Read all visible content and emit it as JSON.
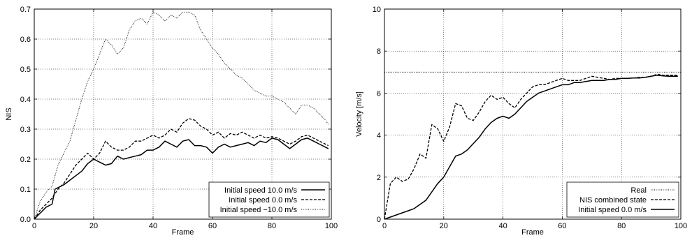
{
  "chart_data": [
    {
      "type": "line",
      "xlabel": "Frame",
      "ylabel": "NIS",
      "xlim": [
        0,
        100
      ],
      "ylim": [
        0,
        0.7
      ],
      "xticks": [
        0,
        20,
        40,
        60,
        80,
        100
      ],
      "yticks": [
        0,
        0.1,
        0.2,
        0.3,
        0.4,
        0.5,
        0.6,
        0.7
      ],
      "grid": true,
      "legend_position": "bottom-right",
      "series": [
        {
          "name": "Initial speed  10.0 m/s",
          "style": "solid",
          "points": [
            [
              0,
              0
            ],
            [
              2,
              0.02
            ],
            [
              4,
              0.04
            ],
            [
              6,
              0.05
            ],
            [
              7,
              0.1
            ],
            [
              10,
              0.115
            ],
            [
              12,
              0.13
            ],
            [
              14,
              0.145
            ],
            [
              16,
              0.16
            ],
            [
              18,
              0.185
            ],
            [
              20,
              0.2
            ],
            [
              22,
              0.19
            ],
            [
              24,
              0.18
            ],
            [
              26,
              0.185
            ],
            [
              28,
              0.21
            ],
            [
              30,
              0.2
            ],
            [
              32,
              0.205
            ],
            [
              34,
              0.21
            ],
            [
              36,
              0.215
            ],
            [
              38,
              0.23
            ],
            [
              40,
              0.23
            ],
            [
              42,
              0.24
            ],
            [
              44,
              0.26
            ],
            [
              46,
              0.25
            ],
            [
              48,
              0.24
            ],
            [
              50,
              0.26
            ],
            [
              52,
              0.265
            ],
            [
              54,
              0.245
            ],
            [
              56,
              0.245
            ],
            [
              58,
              0.24
            ],
            [
              60,
              0.22
            ],
            [
              62,
              0.24
            ],
            [
              64,
              0.25
            ],
            [
              66,
              0.24
            ],
            [
              68,
              0.245
            ],
            [
              70,
              0.25
            ],
            [
              72,
              0.255
            ],
            [
              74,
              0.245
            ],
            [
              76,
              0.26
            ],
            [
              78,
              0.255
            ],
            [
              80,
              0.27
            ],
            [
              82,
              0.265
            ],
            [
              84,
              0.25
            ],
            [
              86,
              0.235
            ],
            [
              88,
              0.25
            ],
            [
              90,
              0.265
            ],
            [
              92,
              0.27
            ],
            [
              94,
              0.26
            ],
            [
              96,
              0.25
            ],
            [
              98,
              0.24
            ],
            [
              99,
              0.235
            ]
          ]
        },
        {
          "name": "Initial speed  0.0 m/s",
          "style": "dashed",
          "points": [
            [
              0,
              0
            ],
            [
              2,
              0.03
            ],
            [
              4,
              0.05
            ],
            [
              6,
              0.07
            ],
            [
              8,
              0.1
            ],
            [
              10,
              0.12
            ],
            [
              12,
              0.15
            ],
            [
              14,
              0.18
            ],
            [
              16,
              0.2
            ],
            [
              18,
              0.22
            ],
            [
              20,
              0.2
            ],
            [
              22,
              0.22
            ],
            [
              24,
              0.26
            ],
            [
              26,
              0.24
            ],
            [
              28,
              0.23
            ],
            [
              30,
              0.23
            ],
            [
              32,
              0.24
            ],
            [
              34,
              0.26
            ],
            [
              36,
              0.26
            ],
            [
              38,
              0.27
            ],
            [
              40,
              0.28
            ],
            [
              42,
              0.27
            ],
            [
              44,
              0.28
            ],
            [
              46,
              0.3
            ],
            [
              48,
              0.29
            ],
            [
              50,
              0.32
            ],
            [
              52,
              0.335
            ],
            [
              54,
              0.33
            ],
            [
              56,
              0.31
            ],
            [
              58,
              0.3
            ],
            [
              60,
              0.28
            ],
            [
              62,
              0.29
            ],
            [
              64,
              0.27
            ],
            [
              66,
              0.285
            ],
            [
              68,
              0.28
            ],
            [
              70,
              0.29
            ],
            [
              72,
              0.28
            ],
            [
              74,
              0.27
            ],
            [
              76,
              0.28
            ],
            [
              78,
              0.27
            ],
            [
              80,
              0.275
            ],
            [
              82,
              0.27
            ],
            [
              84,
              0.26
            ],
            [
              86,
              0.25
            ],
            [
              88,
              0.26
            ],
            [
              90,
              0.275
            ],
            [
              92,
              0.28
            ],
            [
              94,
              0.27
            ],
            [
              96,
              0.26
            ],
            [
              98,
              0.25
            ],
            [
              99,
              0.245
            ]
          ]
        },
        {
          "name": "Initial speed −10.0 m/s",
          "style": "dotted",
          "points": [
            [
              0,
              0
            ],
            [
              2,
              0.06
            ],
            [
              4,
              0.09
            ],
            [
              6,
              0.11
            ],
            [
              8,
              0.18
            ],
            [
              10,
              0.22
            ],
            [
              12,
              0.26
            ],
            [
              14,
              0.33
            ],
            [
              16,
              0.4
            ],
            [
              18,
              0.46
            ],
            [
              20,
              0.5
            ],
            [
              22,
              0.55
            ],
            [
              24,
              0.6
            ],
            [
              26,
              0.58
            ],
            [
              28,
              0.55
            ],
            [
              30,
              0.57
            ],
            [
              32,
              0.63
            ],
            [
              34,
              0.66
            ],
            [
              36,
              0.67
            ],
            [
              38,
              0.65
            ],
            [
              40,
              0.69
            ],
            [
              42,
              0.68
            ],
            [
              44,
              0.66
            ],
            [
              46,
              0.68
            ],
            [
              48,
              0.67
            ],
            [
              50,
              0.69
            ],
            [
              52,
              0.69
            ],
            [
              54,
              0.68
            ],
            [
              56,
              0.63
            ],
            [
              58,
              0.6
            ],
            [
              60,
              0.57
            ],
            [
              62,
              0.55
            ],
            [
              64,
              0.52
            ],
            [
              66,
              0.5
            ],
            [
              68,
              0.48
            ],
            [
              70,
              0.47
            ],
            [
              72,
              0.45
            ],
            [
              74,
              0.43
            ],
            [
              76,
              0.42
            ],
            [
              78,
              0.41
            ],
            [
              80,
              0.41
            ],
            [
              82,
              0.4
            ],
            [
              84,
              0.39
            ],
            [
              86,
              0.37
            ],
            [
              88,
              0.35
            ],
            [
              90,
              0.38
            ],
            [
              92,
              0.38
            ],
            [
              94,
              0.37
            ],
            [
              96,
              0.35
            ],
            [
              98,
              0.33
            ],
            [
              99,
              0.315
            ]
          ]
        }
      ]
    },
    {
      "type": "line",
      "xlabel": "Frame",
      "ylabel": "Velocity [m/s]",
      "xlim": [
        0,
        100
      ],
      "ylim": [
        0,
        10
      ],
      "xticks": [
        0,
        20,
        40,
        60,
        80,
        100
      ],
      "yticks": [
        0,
        2,
        4,
        6,
        8,
        10
      ],
      "grid": true,
      "legend_position": "bottom-right",
      "series": [
        {
          "name": "Real",
          "style": "dotted",
          "points": [
            [
              0,
              7
            ],
            [
              100,
              7
            ]
          ]
        },
        {
          "name": "NIS combined state",
          "style": "dashed",
          "points": [
            [
              0,
              0
            ],
            [
              2,
              1.7
            ],
            [
              4,
              2.0
            ],
            [
              6,
              1.8
            ],
            [
              8,
              1.9
            ],
            [
              10,
              2.4
            ],
            [
              12,
              3.1
            ],
            [
              14,
              2.9
            ],
            [
              16,
              4.5
            ],
            [
              18,
              4.3
            ],
            [
              20,
              3.7
            ],
            [
              22,
              4.4
            ],
            [
              24,
              5.5
            ],
            [
              26,
              5.4
            ],
            [
              28,
              4.8
            ],
            [
              30,
              4.7
            ],
            [
              32,
              5.1
            ],
            [
              34,
              5.6
            ],
            [
              36,
              5.9
            ],
            [
              38,
              5.7
            ],
            [
              40,
              5.8
            ],
            [
              42,
              5.5
            ],
            [
              44,
              5.3
            ],
            [
              46,
              5.7
            ],
            [
              48,
              6.0
            ],
            [
              50,
              6.3
            ],
            [
              52,
              6.4
            ],
            [
              54,
              6.4
            ],
            [
              56,
              6.5
            ],
            [
              58,
              6.6
            ],
            [
              60,
              6.7
            ],
            [
              62,
              6.6
            ],
            [
              64,
              6.6
            ],
            [
              66,
              6.6
            ],
            [
              68,
              6.7
            ],
            [
              70,
              6.8
            ],
            [
              72,
              6.75
            ],
            [
              74,
              6.7
            ],
            [
              76,
              6.65
            ],
            [
              78,
              6.7
            ],
            [
              80,
              6.7
            ],
            [
              82,
              6.7
            ],
            [
              84,
              6.72
            ],
            [
              86,
              6.75
            ],
            [
              88,
              6.75
            ],
            [
              90,
              6.8
            ],
            [
              92,
              6.9
            ],
            [
              94,
              6.85
            ],
            [
              96,
              6.85
            ],
            [
              98,
              6.85
            ],
            [
              99,
              6.85
            ]
          ]
        },
        {
          "name": "Initial speed 0.0 m/s",
          "style": "solid",
          "points": [
            [
              0,
              0
            ],
            [
              2,
              0.1
            ],
            [
              4,
              0.2
            ],
            [
              6,
              0.3
            ],
            [
              8,
              0.4
            ],
            [
              10,
              0.5
            ],
            [
              12,
              0.7
            ],
            [
              14,
              0.9
            ],
            [
              16,
              1.3
            ],
            [
              18,
              1.7
            ],
            [
              20,
              2.0
            ],
            [
              22,
              2.5
            ],
            [
              24,
              3.0
            ],
            [
              26,
              3.1
            ],
            [
              28,
              3.3
            ],
            [
              30,
              3.6
            ],
            [
              32,
              3.9
            ],
            [
              34,
              4.3
            ],
            [
              36,
              4.6
            ],
            [
              38,
              4.8
            ],
            [
              40,
              4.9
            ],
            [
              42,
              4.8
            ],
            [
              44,
              5.0
            ],
            [
              46,
              5.3
            ],
            [
              48,
              5.6
            ],
            [
              50,
              5.8
            ],
            [
              52,
              6.0
            ],
            [
              54,
              6.1
            ],
            [
              56,
              6.2
            ],
            [
              58,
              6.3
            ],
            [
              60,
              6.4
            ],
            [
              62,
              6.4
            ],
            [
              64,
              6.5
            ],
            [
              66,
              6.5
            ],
            [
              68,
              6.55
            ],
            [
              70,
              6.6
            ],
            [
              72,
              6.6
            ],
            [
              74,
              6.6
            ],
            [
              76,
              6.65
            ],
            [
              78,
              6.65
            ],
            [
              80,
              6.7
            ],
            [
              82,
              6.7
            ],
            [
              84,
              6.72
            ],
            [
              86,
              6.72
            ],
            [
              88,
              6.75
            ],
            [
              90,
              6.8
            ],
            [
              92,
              6.85
            ],
            [
              94,
              6.82
            ],
            [
              96,
              6.8
            ],
            [
              98,
              6.8
            ],
            [
              99,
              6.8
            ]
          ]
        }
      ]
    }
  ]
}
